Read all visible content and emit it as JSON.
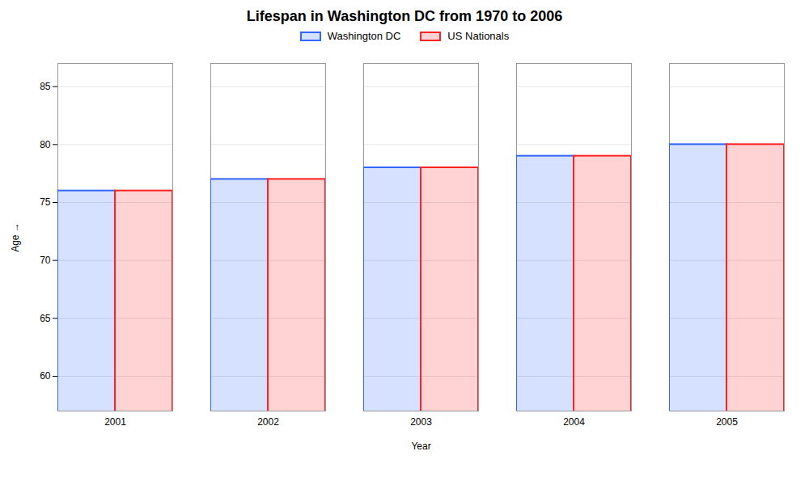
{
  "chart_data": {
    "type": "bar",
    "title": "Lifespan in Washington DC from 1970 to 2006",
    "xlabel": "Year",
    "ylabel": "Age",
    "categories": [
      "2001",
      "2002",
      "2003",
      "2004",
      "2005"
    ],
    "series": [
      {
        "name": "Washington DC",
        "color": "#3366ff",
        "values": [
          76,
          77,
          78,
          79,
          80
        ]
      },
      {
        "name": "US Nationals",
        "color": "#ff2222",
        "values": [
          76,
          77,
          78,
          79,
          80
        ]
      }
    ],
    "ylim": [
      57,
      87
    ],
    "yticks": [
      60,
      65,
      70,
      75,
      80,
      85
    ],
    "grid": true,
    "legend": "top"
  }
}
